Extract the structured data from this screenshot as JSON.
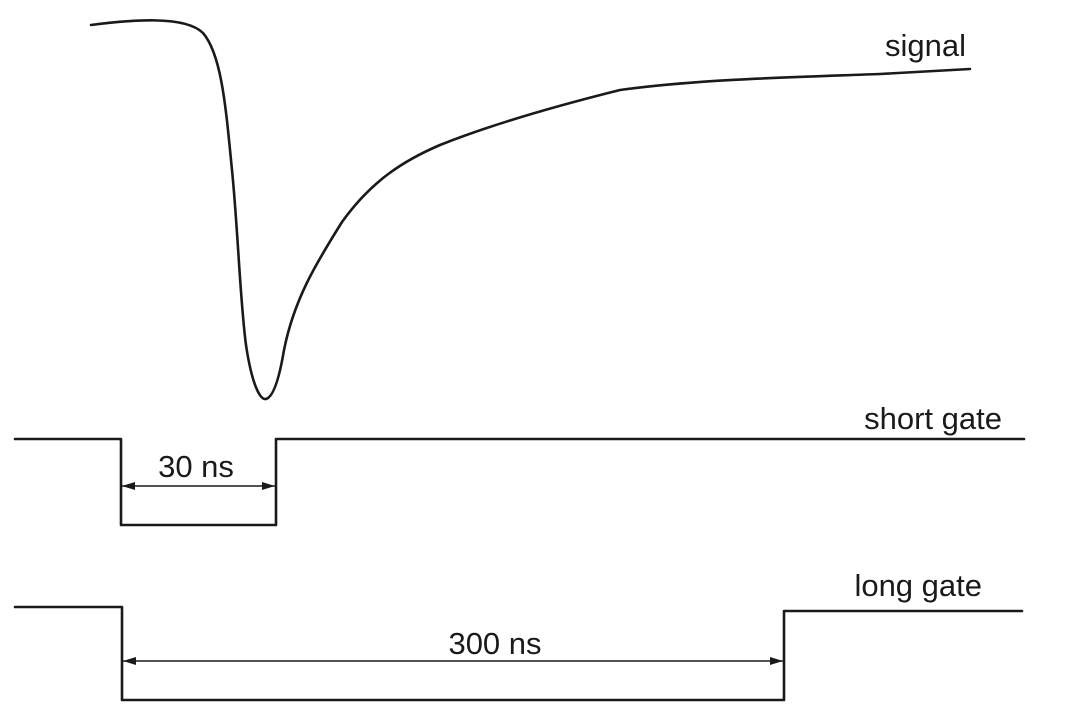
{
  "diagram": {
    "signal": {
      "label": "signal"
    },
    "short_gate": {
      "label": "short gate",
      "width_label": "30 ns"
    },
    "long_gate": {
      "label": "long gate",
      "width_label": "300 ns"
    },
    "stroke_color": "#1a1a1a"
  }
}
